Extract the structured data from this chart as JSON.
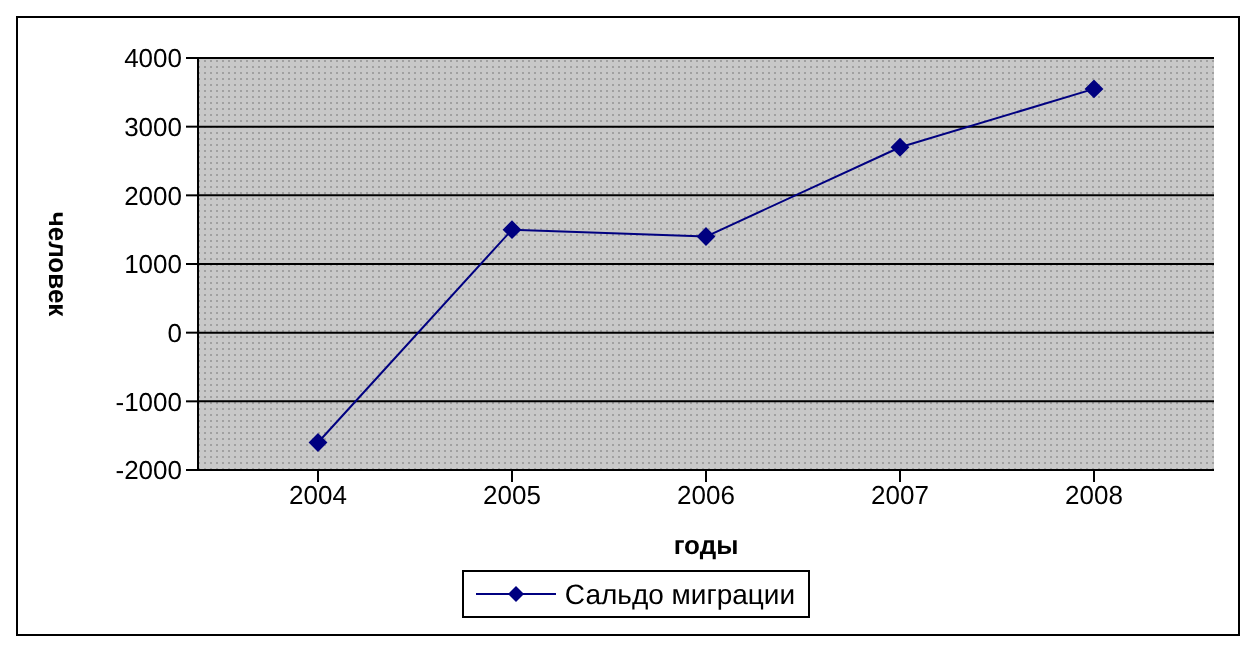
{
  "chart_data": {
    "type": "line",
    "xlabel": "годы",
    "ylabel": "человек",
    "categories": [
      "2004",
      "2005",
      "2006",
      "2007",
      "2008"
    ],
    "series": [
      {
        "name": "Сальдо миграции",
        "color": "#000080",
        "values": [
          -1600,
          1500,
          1400,
          2700,
          3550
        ]
      }
    ],
    "ylim": [
      -2000,
      4000
    ],
    "yticks": [
      -2000,
      -1000,
      0,
      1000,
      2000,
      3000,
      4000
    ],
    "grid": "y",
    "legend": "bottom",
    "marker": "diamond"
  }
}
